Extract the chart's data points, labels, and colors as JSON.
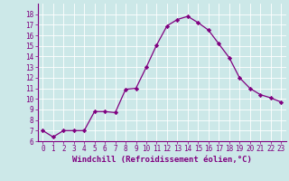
{
  "x": [
    0,
    1,
    2,
    3,
    4,
    5,
    6,
    7,
    8,
    9,
    10,
    11,
    12,
    13,
    14,
    15,
    16,
    17,
    18,
    19,
    20,
    21,
    22,
    23
  ],
  "y": [
    7.0,
    6.4,
    7.0,
    7.0,
    7.0,
    8.8,
    8.8,
    8.7,
    10.9,
    11.0,
    13.0,
    15.1,
    16.9,
    17.5,
    17.8,
    17.2,
    16.5,
    15.2,
    13.9,
    12.0,
    11.0,
    10.4,
    10.1,
    9.7
  ],
  "line_color": "#800080",
  "marker": "D",
  "marker_size": 2.2,
  "bg_color": "#cce8e8",
  "grid_color": "#ffffff",
  "xlabel": "Windchill (Refroidissement éolien,°C)",
  "xlabel_color": "#800080",
  "tick_color": "#800080",
  "ylim": [
    6,
    19
  ],
  "xlim": [
    -0.5,
    23.5
  ],
  "yticks": [
    6,
    7,
    8,
    9,
    10,
    11,
    12,
    13,
    14,
    15,
    16,
    17,
    18
  ],
  "xticks": [
    0,
    1,
    2,
    3,
    4,
    5,
    6,
    7,
    8,
    9,
    10,
    11,
    12,
    13,
    14,
    15,
    16,
    17,
    18,
    19,
    20,
    21,
    22,
    23
  ],
  "tick_fontsize": 5.5,
  "xlabel_fontsize": 6.5
}
